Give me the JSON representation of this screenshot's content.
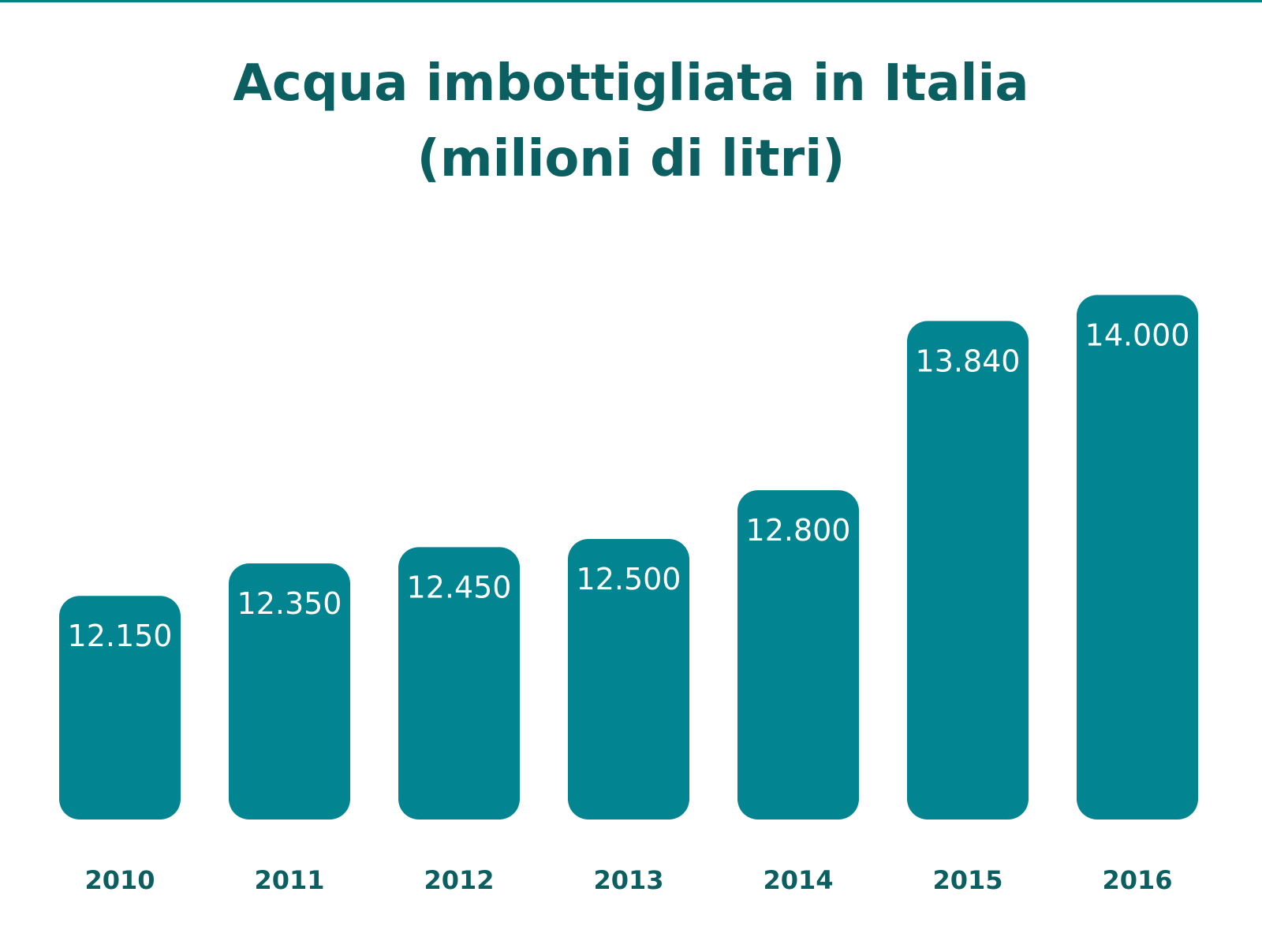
{
  "chart_data": {
    "type": "bar",
    "title_line1": "Acqua imbottigliata in Italia",
    "title_line2": "(milioni di litri)",
    "xlabel": "",
    "ylabel": "",
    "categories": [
      "2010",
      "2011",
      "2012",
      "2013",
      "2014",
      "2015",
      "2016"
    ],
    "values": [
      12150,
      12350,
      12450,
      12500,
      12800,
      13840,
      14000
    ],
    "value_labels": [
      "12.150",
      "12.350",
      "12.450",
      "12.500",
      "12.800",
      "13.840",
      "14.000"
    ],
    "grid": false,
    "legend": "none",
    "colors": {
      "bar": "#028590",
      "title": "#0b5f61",
      "value_label": "#ffffff",
      "category_label": "#0b5f61"
    }
  }
}
